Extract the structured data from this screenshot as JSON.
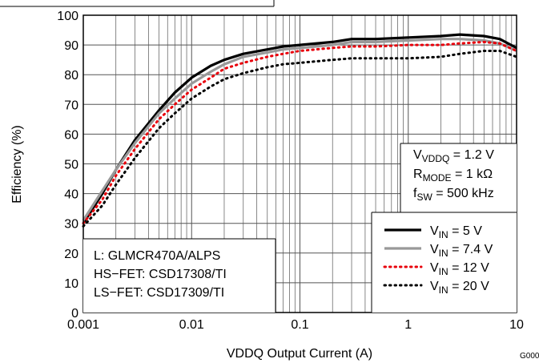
{
  "chart_data": {
    "type": "line",
    "title": "",
    "xlabel": "VDDQ  Output Current (A)",
    "ylabel": "Efficiency (%)",
    "xscale": "log",
    "xlim": [
      0.001,
      10
    ],
    "ylim": [
      0,
      100
    ],
    "grid": true,
    "x_ticks": [
      "0.001",
      "0.01",
      "0.1",
      "1",
      "10"
    ],
    "y_ticks": [
      "0",
      "10",
      "20",
      "30",
      "40",
      "50",
      "60",
      "70",
      "80",
      "90",
      "100"
    ],
    "figure_id": "G000",
    "conditions": [
      {
        "sym": "V",
        "sub": "VDDQ",
        "rest": " = 1.2 V"
      },
      {
        "sym": "R",
        "sub": "MODE",
        "rest": " = 1 kΩ"
      },
      {
        "sym": "f",
        "sub": "SW",
        "rest": " = 500 kHz"
      }
    ],
    "notes": [
      "L: GLMCR470A/ALPS",
      "HS−FET: CSD17308/TI",
      "LS−FET: CSD17309/TI"
    ],
    "legend_position": "bottom-right",
    "series": [
      {
        "sym": "V",
        "sub": "IN",
        "rest": " = 5 V",
        "color": "#000000",
        "style": "solid-thick",
        "x": [
          0.001,
          0.0015,
          0.002,
          0.003,
          0.005,
          0.007,
          0.01,
          0.015,
          0.02,
          0.03,
          0.05,
          0.07,
          0.1,
          0.2,
          0.3,
          0.5,
          1,
          2,
          3,
          5,
          7,
          10
        ],
        "y": [
          30,
          40,
          48,
          58,
          68,
          74,
          79,
          83,
          85,
          87,
          88.5,
          89.5,
          90,
          91,
          92,
          92,
          92.5,
          93,
          93.5,
          93,
          92,
          89
        ]
      },
      {
        "sym": "V",
        "sub": "IN",
        "rest": " = 7.4 V",
        "color": "#999999",
        "style": "solid-thick",
        "x": [
          0.001,
          0.0015,
          0.002,
          0.003,
          0.005,
          0.007,
          0.01,
          0.015,
          0.02,
          0.03,
          0.05,
          0.07,
          0.1,
          0.2,
          0.3,
          0.5,
          1,
          2,
          3,
          5,
          7,
          10
        ],
        "y": [
          31,
          41,
          48,
          57,
          67,
          72,
          77,
          81,
          83.5,
          86,
          87.5,
          88.5,
          89,
          90,
          91,
          91,
          91.5,
          92,
          92,
          91.5,
          90.5,
          88
        ]
      },
      {
        "sym": "V",
        "sub": "IN",
        "rest": " = 12 V",
        "color": "#e8000b",
        "style": "dotted",
        "x": [
          0.001,
          0.0015,
          0.002,
          0.003,
          0.005,
          0.007,
          0.01,
          0.015,
          0.02,
          0.03,
          0.05,
          0.07,
          0.1,
          0.2,
          0.3,
          0.5,
          1,
          2,
          3,
          5,
          7,
          10
        ],
        "y": [
          30,
          38,
          46,
          55,
          65,
          70,
          75,
          79,
          82,
          84,
          86,
          87,
          88,
          89,
          89.5,
          89.5,
          90,
          90,
          90.5,
          91,
          90.5,
          88
        ]
      },
      {
        "sym": "V",
        "sub": "IN",
        "rest": " = 20 V",
        "color": "#000000",
        "style": "dotted",
        "x": [
          0.001,
          0.0015,
          0.002,
          0.003,
          0.005,
          0.007,
          0.01,
          0.015,
          0.02,
          0.03,
          0.05,
          0.07,
          0.1,
          0.2,
          0.3,
          0.5,
          1,
          2,
          3,
          5,
          7,
          10
        ],
        "y": [
          29,
          36,
          43,
          52,
          62,
          67,
          72,
          76,
          78.5,
          80.5,
          82.5,
          83.5,
          84,
          85,
          85.5,
          85.5,
          85.5,
          86,
          87,
          88,
          88,
          86
        ]
      }
    ]
  }
}
